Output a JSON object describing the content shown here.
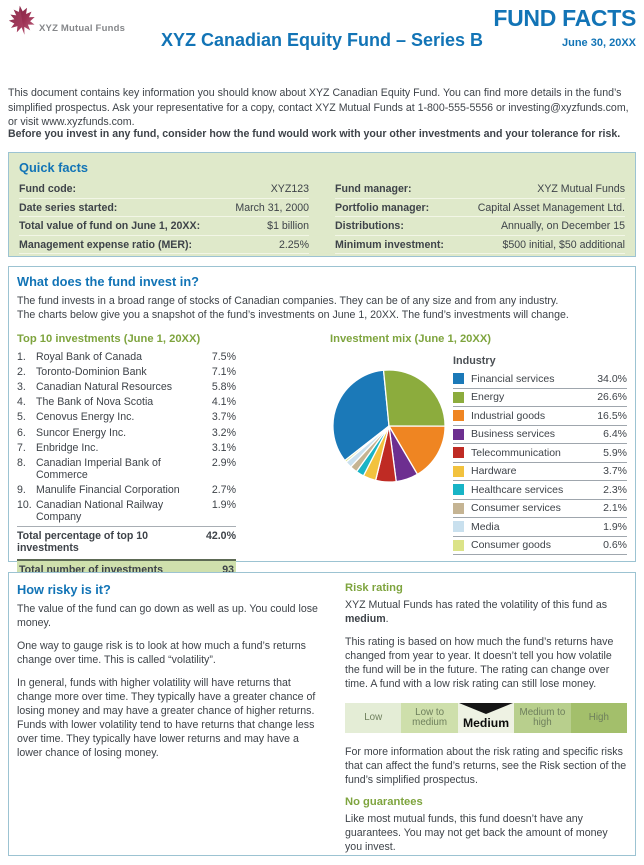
{
  "header": {
    "brand": "XYZ Mutual Funds",
    "fund_title": "XYZ Canadian Equity Fund – Series B",
    "doc_title": "FUND FACTS",
    "date": "June 30, 20XX"
  },
  "icons": {
    "logo": "maple-leaf-icon"
  },
  "intro": {
    "p1": "This document contains key information you should know about XYZ Canadian Equity Fund. You can find more details in the fund’s simplified prospectus. Ask your representative for a copy, contact XYZ Mutual Funds at 1-800-555-5556 or investing@xyzfunds.com, or visit www.xyzfunds.com.",
    "warning": "Before you invest in any fund, consider how the fund would work with your other investments and your tolerance for risk."
  },
  "quick_facts": {
    "title": "Quick facts",
    "left": [
      {
        "label": "Fund code:",
        "value": "XYZ123"
      },
      {
        "label": "Date series started:",
        "value": "March 31, 2000"
      },
      {
        "label": "Total value of fund on June 1, 20XX:",
        "value": "$1 billion"
      },
      {
        "label": "Management expense ratio (MER):",
        "value": "2.25%"
      }
    ],
    "right": [
      {
        "label": "Fund manager:",
        "value": "XYZ Mutual Funds"
      },
      {
        "label": "Portfolio manager:",
        "value": "Capital Asset Management Ltd."
      },
      {
        "label": "Distributions:",
        "value": "Annually, on December 15"
      },
      {
        "label": "Minimum investment:",
        "value": "$500 initial, $50 additional"
      }
    ]
  },
  "invest_section": {
    "title": "What does the fund invest in?",
    "p1": "The fund invests in a broad range of stocks of Canadian companies. They can be of any size and from any industry.",
    "p2": "The charts below give you a snapshot of the fund’s investments on June 1, 20XX. The fund’s investments will change.",
    "top10": {
      "title": "Top 10 investments (June 1, 20XX)",
      "items": [
        {
          "rank": "1.",
          "name": "Royal Bank of Canada",
          "pct": "7.5%"
        },
        {
          "rank": "2.",
          "name": "Toronto-Dominion Bank",
          "pct": "7.1%"
        },
        {
          "rank": "3.",
          "name": "Canadian Natural Resources",
          "pct": "5.8%"
        },
        {
          "rank": "4.",
          "name": "The Bank of Nova Scotia",
          "pct": "4.1%"
        },
        {
          "rank": "5.",
          "name": "Cenovus Energy Inc.",
          "pct": "3.7%"
        },
        {
          "rank": "6.",
          "name": "Suncor Energy Inc.",
          "pct": "3.2%"
        },
        {
          "rank": "7.",
          "name": "Enbridge Inc.",
          "pct": "3.1%"
        },
        {
          "rank": "8.",
          "name": "Canadian Imperial Bank of Commerce",
          "pct": "2.9%"
        },
        {
          "rank": "9.",
          "name": "Manulife Financial Corporation",
          "pct": "2.7%"
        },
        {
          "rank": "10.",
          "name": "Canadian National Railway Company",
          "pct": "1.9%"
        }
      ],
      "total_pct": {
        "label": "Total percentage of top 10 investments",
        "value": "42.0%"
      },
      "total_count": {
        "label": "Total number of investments",
        "value": "93"
      }
    },
    "mix_title": "Investment mix (June 1, 20XX)"
  },
  "chart_data": {
    "type": "pie",
    "title": "Investment mix (June 1, 20XX)",
    "legend_title": "Industry",
    "unit": "%",
    "labels": [
      "Financial services",
      "Energy",
      "Industrial goods",
      "Business services",
      "Telecommunication",
      "Hardware",
      "Healthcare services",
      "Consumer services",
      "Media",
      "Consumer goods"
    ],
    "values": [
      34.0,
      26.6,
      16.5,
      6.4,
      5.9,
      3.7,
      2.3,
      2.1,
      1.9,
      0.6
    ],
    "colors": [
      "#1b79b8",
      "#8cac3d",
      "#ef8522",
      "#6d2f90",
      "#bf2b24",
      "#f2c23e",
      "#18b4c6",
      "#c5b493",
      "#c9e0ee",
      "#dbe388"
    ],
    "legend_position": "right",
    "start_angle_deg": 232
  },
  "risk_section": {
    "title": "How risky is it?",
    "p1": "The value of the fund can go down as well as up. You could lose money.",
    "p2": "One way to gauge risk is to look at how much a fund’s returns change over time. This is called “volatility”.",
    "p3": "In general, funds with higher volatility will have returns that change more over time. They typically have a greater chance of losing money and may have a greater chance of higher returns. Funds with lower volatility tend to have returns that change less over time. They typically have lower returns and may have a lower chance of losing money.",
    "rating": {
      "title": "Risk rating",
      "p1_prefix": "XYZ Mutual Funds has rated the volatility of this fund as ",
      "p1_bold": "medium",
      "p1_suffix": ".",
      "p2": "This rating is based on how much the fund’s returns have changed from year to year. It doesn’t tell you how volatile the fund will be in the future. The rating can change over time. A fund with a low risk rating can still lose money.",
      "scale": {
        "levels": [
          "Low",
          "Low to medium",
          "Medium",
          "Medium to high",
          "High"
        ],
        "selected": "Medium",
        "segment_colors": [
          "#e4edd6",
          "#cedfab",
          "#eef2e3",
          "#b8cf8d",
          "#a3bf6b"
        ]
      },
      "p3": "For more information about the risk rating and specific risks that can affect the fund’s returns, see the Risk section of the fund’s simplified prospectus."
    },
    "no_guarantees": {
      "title": "No guarantees",
      "p1": "Like most mutual funds, this fund doesn’t have any guarantees. You may not get back the amount of money you invest."
    }
  },
  "colors": {
    "heading_blue": "#1274b6",
    "subhead_green": "#7ea43e",
    "body_text": "#3e4349",
    "quick_facts_bg": "#dfe9ca",
    "box_border": "#9cc3d2",
    "total_row_bg": "#cfe0ad",
    "logo_maroon": "#8c2a4a"
  }
}
